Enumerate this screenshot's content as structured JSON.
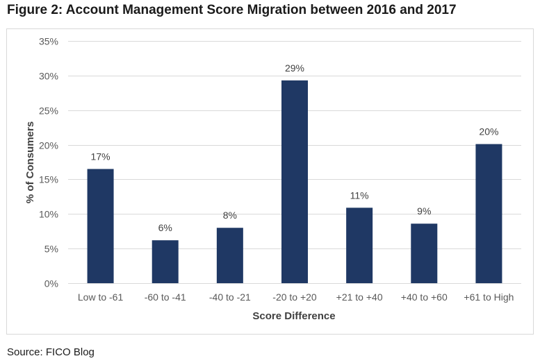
{
  "figure": {
    "title": "Figure 2: Account Management Score Migration between 2016 and 2017",
    "source": "Source: FICO Blog"
  },
  "colors": {
    "bar": "#1f3864",
    "grid": "#d9d9d9",
    "tick_text": "#595959",
    "label_text": "#404040"
  },
  "chart_data": {
    "type": "bar",
    "categories": [
      "Low to -61",
      "-60 to -41",
      "-40 to -21",
      "-20 to +20",
      "+21 to +40",
      "+40 to +60",
      "+61 to High"
    ],
    "values": [
      16.5,
      6.2,
      8.0,
      29.3,
      10.9,
      8.6,
      20.1
    ],
    "data_labels": [
      "17%",
      "6%",
      "8%",
      "29%",
      "11%",
      "9%",
      "20%"
    ],
    "xlabel": "Score Difference",
    "ylabel": "% of Consumers",
    "ylim": [
      0,
      35
    ],
    "yticks": [
      0,
      5,
      10,
      15,
      20,
      25,
      30,
      35
    ],
    "ytick_labels": [
      "0%",
      "5%",
      "10%",
      "15%",
      "20%",
      "25%",
      "30%",
      "35%"
    ],
    "grid": true,
    "legend": "none"
  }
}
